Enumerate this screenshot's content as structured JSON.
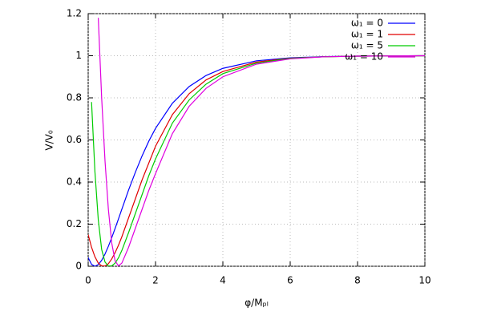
{
  "chart_data": {
    "type": "line",
    "xlabel": "φ/Mₚₗ",
    "ylabel": "V/V₀",
    "x": [
      0,
      0.1,
      0.2,
      0.3,
      0.4,
      0.5,
      0.6,
      0.7,
      0.8,
      0.9,
      1.0,
      1.2,
      1.4,
      1.6,
      1.8,
      2,
      2.5,
      3,
      3.5,
      4,
      5,
      6,
      7,
      8,
      9,
      10
    ],
    "series": [
      {
        "name": "ω₁ = 0",
        "color": "#0000ff",
        "values": [
          0.041,
          0.009,
          0,
          0.008,
          0.028,
          0.058,
          0.095,
          0.136,
          0.18,
          0.225,
          0.271,
          0.362,
          0.446,
          0.524,
          0.594,
          0.655,
          0.774,
          0.854,
          0.906,
          0.94,
          0.976,
          0.99,
          0.996,
          0.998,
          0.999,
          1
        ]
      },
      {
        "name": "ω₁ = 1",
        "color": "#e00000",
        "values": [
          0.15,
          0.09,
          0.045,
          0.015,
          0.002,
          0.001,
          0.012,
          0.035,
          0.065,
          0.1,
          0.14,
          0.23,
          0.32,
          0.41,
          0.49,
          0.57,
          0.72,
          0.82,
          0.885,
          0.925,
          0.97,
          0.988,
          0.995,
          0.998,
          0.999,
          1
        ]
      },
      {
        "name": "ω₁ = 5",
        "color": "#00cc00",
        "values": [
          null,
          0.78,
          0.45,
          0.22,
          0.08,
          0.02,
          0.001,
          0.002,
          0.015,
          0.04,
          0.075,
          0.16,
          0.25,
          0.34,
          0.43,
          0.51,
          0.68,
          0.79,
          0.865,
          0.915,
          0.965,
          0.987,
          0.995,
          0.998,
          0.999,
          1
        ]
      },
      {
        "name": "ω₁ = 10",
        "color": "#e000e0",
        "values": [
          null,
          null,
          null,
          1.18,
          0.8,
          0.5,
          0.27,
          0.11,
          0.025,
          0.002,
          0.015,
          0.09,
          0.18,
          0.27,
          0.36,
          0.44,
          0.63,
          0.76,
          0.845,
          0.9,
          0.96,
          0.985,
          0.995,
          0.998,
          0.999,
          1
        ]
      }
    ],
    "xlim": [
      0,
      10
    ],
    "xticks": [
      0,
      2,
      4,
      6,
      8,
      10
    ],
    "ylim": [
      0,
      1.2
    ],
    "yticks": [
      0,
      0.2,
      0.4,
      0.6,
      0.8,
      1,
      1.2
    ],
    "grid": true,
    "legend": "top-right"
  }
}
